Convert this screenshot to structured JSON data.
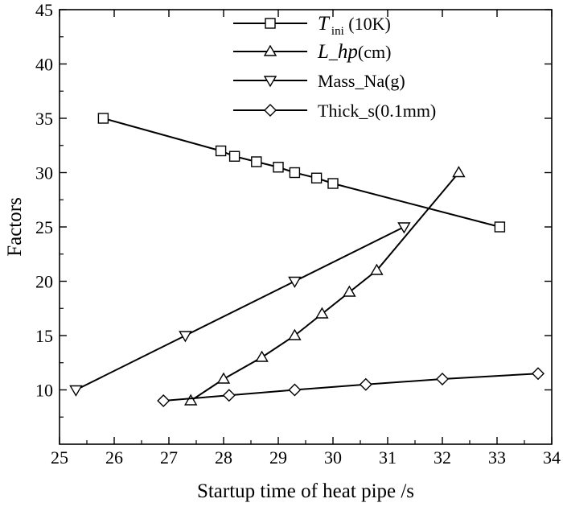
{
  "chart_data": {
    "type": "line",
    "xlabel": "Startup time of heat pipe /s",
    "ylabel": "Factors",
    "xlim": [
      25,
      34
    ],
    "ylim": [
      5,
      45
    ],
    "xticks": [
      25,
      26,
      27,
      28,
      29,
      30,
      31,
      32,
      33,
      34
    ],
    "yticks": [
      10,
      15,
      20,
      25,
      30,
      35,
      40,
      45
    ],
    "grid": false,
    "legend_position": "top-right",
    "series": [
      {
        "name": "T_ini (10K)",
        "legend": {
          "main": "T",
          "sub": "ini",
          "rest": " (10K)"
        },
        "marker": "square",
        "x": [
          25.8,
          27.95,
          28.2,
          28.6,
          29.0,
          29.3,
          29.7,
          30.0,
          33.05
        ],
        "y": [
          35,
          32,
          31.5,
          31,
          30.5,
          30,
          29.5,
          29,
          25
        ]
      },
      {
        "name": "L_hp(cm)",
        "legend": {
          "main": "L",
          "mid": "_",
          "italic2": "hp",
          "rest": "(cm)"
        },
        "marker": "triangle-up",
        "x": [
          27.4,
          28.0,
          28.7,
          29.3,
          29.8,
          30.3,
          30.8,
          32.3
        ],
        "y": [
          9,
          11,
          13,
          15,
          17,
          19,
          21,
          30
        ]
      },
      {
        "name": "Mass_Na(g)",
        "legend": {
          "rest": "Mass_Na(g)"
        },
        "marker": "triangle-down",
        "x": [
          25.3,
          27.3,
          29.3,
          31.3
        ],
        "y": [
          10,
          15,
          20,
          25
        ]
      },
      {
        "name": "Thick_s(0.1mm)",
        "legend": {
          "rest": "Thick_s(0.1mm)"
        },
        "marker": "diamond",
        "x": [
          26.9,
          28.1,
          29.3,
          30.6,
          32.0,
          33.75
        ],
        "y": [
          9,
          9.5,
          10,
          10.5,
          11,
          11.5
        ]
      }
    ]
  }
}
